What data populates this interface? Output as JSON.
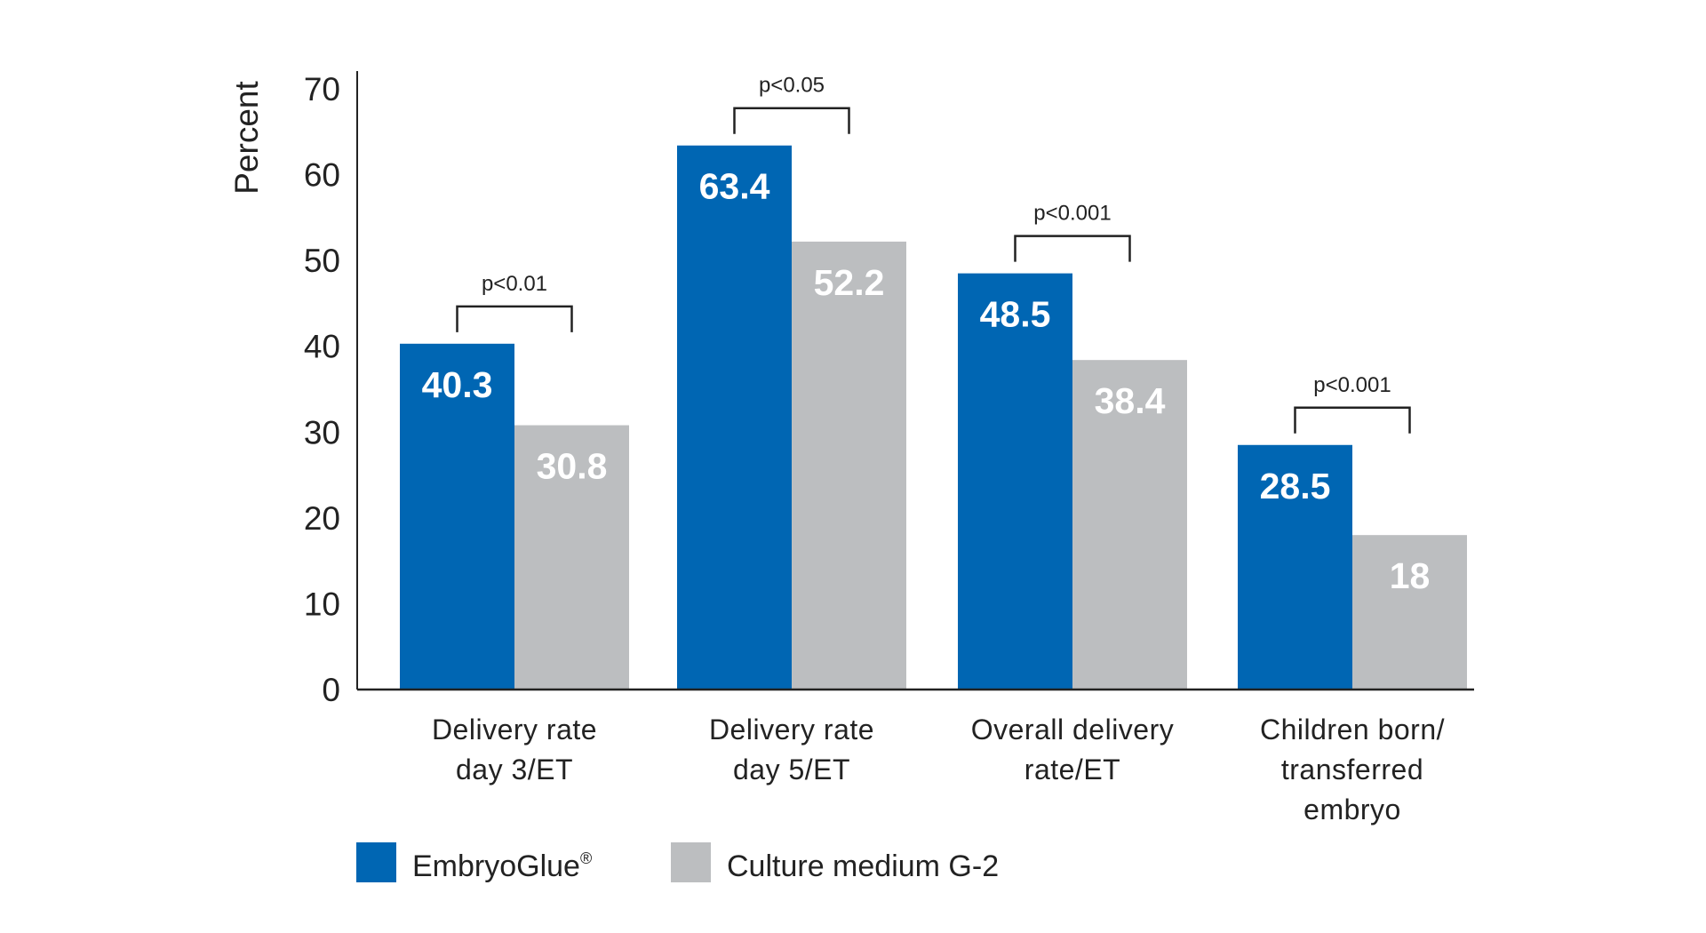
{
  "chart_data": {
    "type": "bar",
    "title": "",
    "xlabel": "",
    "ylabel": "Percent",
    "ylim": [
      0,
      70
    ],
    "yticks": [
      0,
      10,
      20,
      30,
      40,
      50,
      60,
      70
    ],
    "grid": false,
    "categories": [
      [
        "Delivery rate",
        "day 3/ET"
      ],
      [
        "Delivery rate",
        "day 5/ET"
      ],
      [
        "Overall delivery",
        "rate/ET"
      ],
      [
        "Children born/",
        "transferred",
        "embryo"
      ]
    ],
    "series": [
      {
        "name": "EmbryoGlue",
        "legend_suffix": "®",
        "color": "#0066b3",
        "values": [
          40.3,
          63.4,
          48.5,
          28.5
        ],
        "labels": [
          "40.3",
          "63.4",
          "48.5",
          "28.5"
        ]
      },
      {
        "name": "Culture medium G-2",
        "legend_suffix": "",
        "color": "#bcbec0",
        "values": [
          30.8,
          52.2,
          38.4,
          18
        ],
        "labels": [
          "30.8",
          "52.2",
          "38.4",
          "18"
        ]
      }
    ],
    "annotations": [
      "p<0.01",
      "p<0.05",
      "p<0.001",
      "p<0.001"
    ],
    "legend_position": "bottom-left"
  }
}
